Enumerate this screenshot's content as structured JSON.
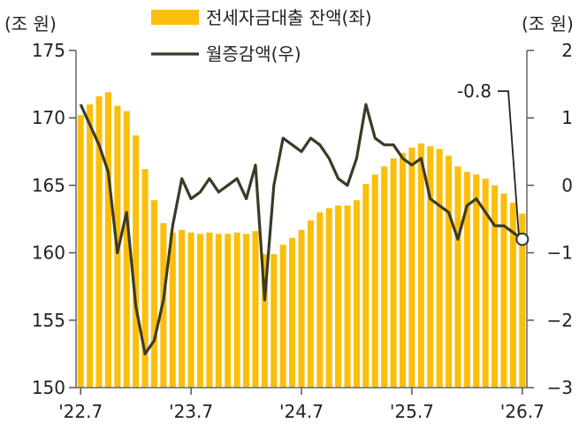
{
  "chart_data": {
    "type": "bar+line",
    "title": "",
    "x_labels": [
      "'22.7",
      "'23.7",
      "'24.7",
      "'25.7",
      "'26.7"
    ],
    "x_label_indices": [
      0,
      12,
      24,
      36,
      48
    ],
    "left_axis": {
      "unit": "(조 원)",
      "range": [
        150,
        175
      ],
      "ticks": [
        150,
        155,
        160,
        165,
        170,
        175
      ]
    },
    "right_axis": {
      "unit": "(조 원)",
      "range": [
        -3,
        2
      ],
      "ticks": [
        -3,
        -2,
        -1,
        0,
        1,
        2
      ]
    },
    "legend": [
      {
        "name": "전세자금대출 잔액(좌)",
        "type": "bar",
        "color": "#FBBF0B"
      },
      {
        "name": "월증감액(우)",
        "type": "line",
        "color": "#3B3A26"
      }
    ],
    "annotation": {
      "text": "-0.8",
      "index": 48,
      "value": -0.8
    },
    "series": [
      {
        "name": "전세자금대출 잔액(좌)",
        "type": "bar",
        "axis": "left",
        "values": [
          170.2,
          171.0,
          171.6,
          171.9,
          170.9,
          170.5,
          168.7,
          166.2,
          163.9,
          162.2,
          161.5,
          161.7,
          161.5,
          161.4,
          161.5,
          161.4,
          161.4,
          161.5,
          161.4,
          161.6,
          159.9,
          159.9,
          160.6,
          161.1,
          161.7,
          162.4,
          163.0,
          163.3,
          163.5,
          163.5,
          163.9,
          165.1,
          165.8,
          166.4,
          167.0,
          167.4,
          167.8,
          168.1,
          167.9,
          167.7,
          167.2,
          166.4,
          166.0,
          165.8,
          165.5,
          165.0,
          164.4,
          163.7,
          162.9
        ]
      },
      {
        "name": "월증감액(우)",
        "type": "line",
        "axis": "right",
        "values": [
          1.2,
          0.9,
          0.6,
          0.2,
          -1.0,
          -0.4,
          -1.8,
          -2.5,
          -2.3,
          -1.7,
          -0.6,
          0.1,
          -0.2,
          -0.1,
          0.1,
          -0.1,
          0.0,
          0.1,
          -0.2,
          0.3,
          -1.7,
          0.0,
          0.7,
          0.6,
          0.5,
          0.7,
          0.6,
          0.4,
          0.1,
          0.0,
          0.4,
          1.2,
          0.7,
          0.6,
          0.6,
          0.4,
          0.3,
          0.4,
          -0.2,
          -0.3,
          -0.4,
          -0.8,
          -0.3,
          -0.2,
          -0.4,
          -0.6,
          -0.6,
          -0.7,
          -0.8
        ]
      }
    ]
  }
}
